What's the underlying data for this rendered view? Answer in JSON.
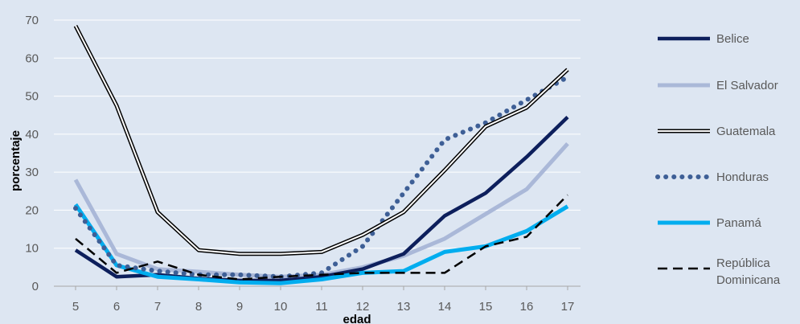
{
  "chart_data": {
    "type": "line",
    "title": "",
    "xlabel": "edad",
    "ylabel": "porcentaje",
    "ylim": [
      0,
      70
    ],
    "yticks": [
      0,
      10,
      20,
      30,
      40,
      50,
      60,
      70
    ],
    "grid": true,
    "legend_position": "right",
    "x": [
      5,
      6,
      7,
      8,
      9,
      10,
      11,
      12,
      13,
      14,
      15,
      16,
      17
    ],
    "series": [
      {
        "name": "Belice",
        "style": "solid",
        "color": "#0d1f5c",
        "values": [
          9.5,
          2.5,
          3.0,
          2.0,
          1.5,
          1.5,
          2.5,
          4.5,
          8.5,
          18.5,
          24.5,
          34.0,
          44.5
        ]
      },
      {
        "name": "El Salvador",
        "style": "solid-thick",
        "color": "#aab8d8",
        "values": [
          28.0,
          8.5,
          4.5,
          3.8,
          3.0,
          2.5,
          3.0,
          5.0,
          8.0,
          12.5,
          19.0,
          25.5,
          37.5
        ]
      },
      {
        "name": "Guatemala",
        "style": "double",
        "color": "#000000",
        "values": [
          68.5,
          47.5,
          19.5,
          9.5,
          8.5,
          8.5,
          9.0,
          13.5,
          19.5,
          30.5,
          42.0,
          47.0,
          57.0
        ]
      },
      {
        "name": "Honduras",
        "style": "dotted",
        "color": "#3e5f96",
        "values": [
          20.5,
          5.5,
          4.0,
          3.0,
          3.0,
          2.5,
          3.5,
          10.5,
          24.5,
          38.5,
          43.0,
          49.0,
          55.0
        ]
      },
      {
        "name": "Panamá",
        "style": "solid-thick",
        "color": "#00adef",
        "values": [
          21.5,
          5.5,
          2.5,
          1.8,
          1.0,
          0.8,
          1.8,
          3.5,
          4.0,
          9.0,
          10.5,
          14.5,
          21.0
        ]
      },
      {
        "name": "República\nDominicana",
        "style": "dashed",
        "color": "#000000",
        "values": [
          12.5,
          3.5,
          6.5,
          3.0,
          1.8,
          2.5,
          3.0,
          3.5,
          3.5,
          3.5,
          10.5,
          13.0,
          24.0
        ]
      }
    ]
  }
}
